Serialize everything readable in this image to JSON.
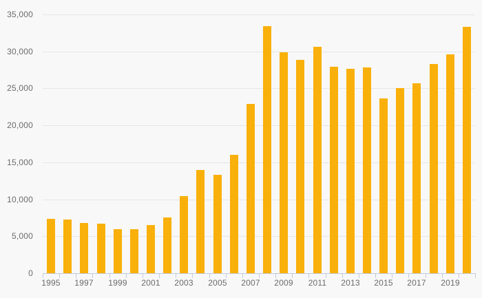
{
  "chart": {
    "colors": {
      "background": "#f8f8f8",
      "bar": "#f9b00a",
      "gridline": "#e6e6e6",
      "axis": "#c2cadd",
      "label_text": "#6a6a6a"
    }
  },
  "chart_data": {
    "type": "bar",
    "categories": [
      1995,
      1996,
      1997,
      1998,
      1999,
      2000,
      2001,
      2002,
      2003,
      2004,
      2005,
      2006,
      2007,
      2008,
      2009,
      2010,
      2011,
      2012,
      2013,
      2014,
      2015,
      2016,
      2017,
      2018,
      2019,
      2020
    ],
    "values": [
      7400,
      7300,
      6800,
      6700,
      6000,
      5950,
      6500,
      7550,
      10400,
      14000,
      13300,
      16000,
      22900,
      33400,
      29900,
      28900,
      30650,
      27900,
      27600,
      27800,
      23600,
      25000,
      25700,
      28300,
      29600,
      33300
    ],
    "ylim": [
      0,
      35000
    ],
    "ytick_step": 5000,
    "ytick_labels": [
      "0",
      "5,000",
      "10,000",
      "15,000",
      "20,000",
      "25,000",
      "30,000",
      "35,000"
    ],
    "xtick_labels": [
      "1995",
      "1997",
      "1999",
      "2001",
      "2003",
      "2005",
      "2007",
      "2009",
      "2011",
      "2013",
      "2015",
      "2017",
      "2019"
    ],
    "grid": true,
    "legend": false,
    "legend_position": "none"
  }
}
